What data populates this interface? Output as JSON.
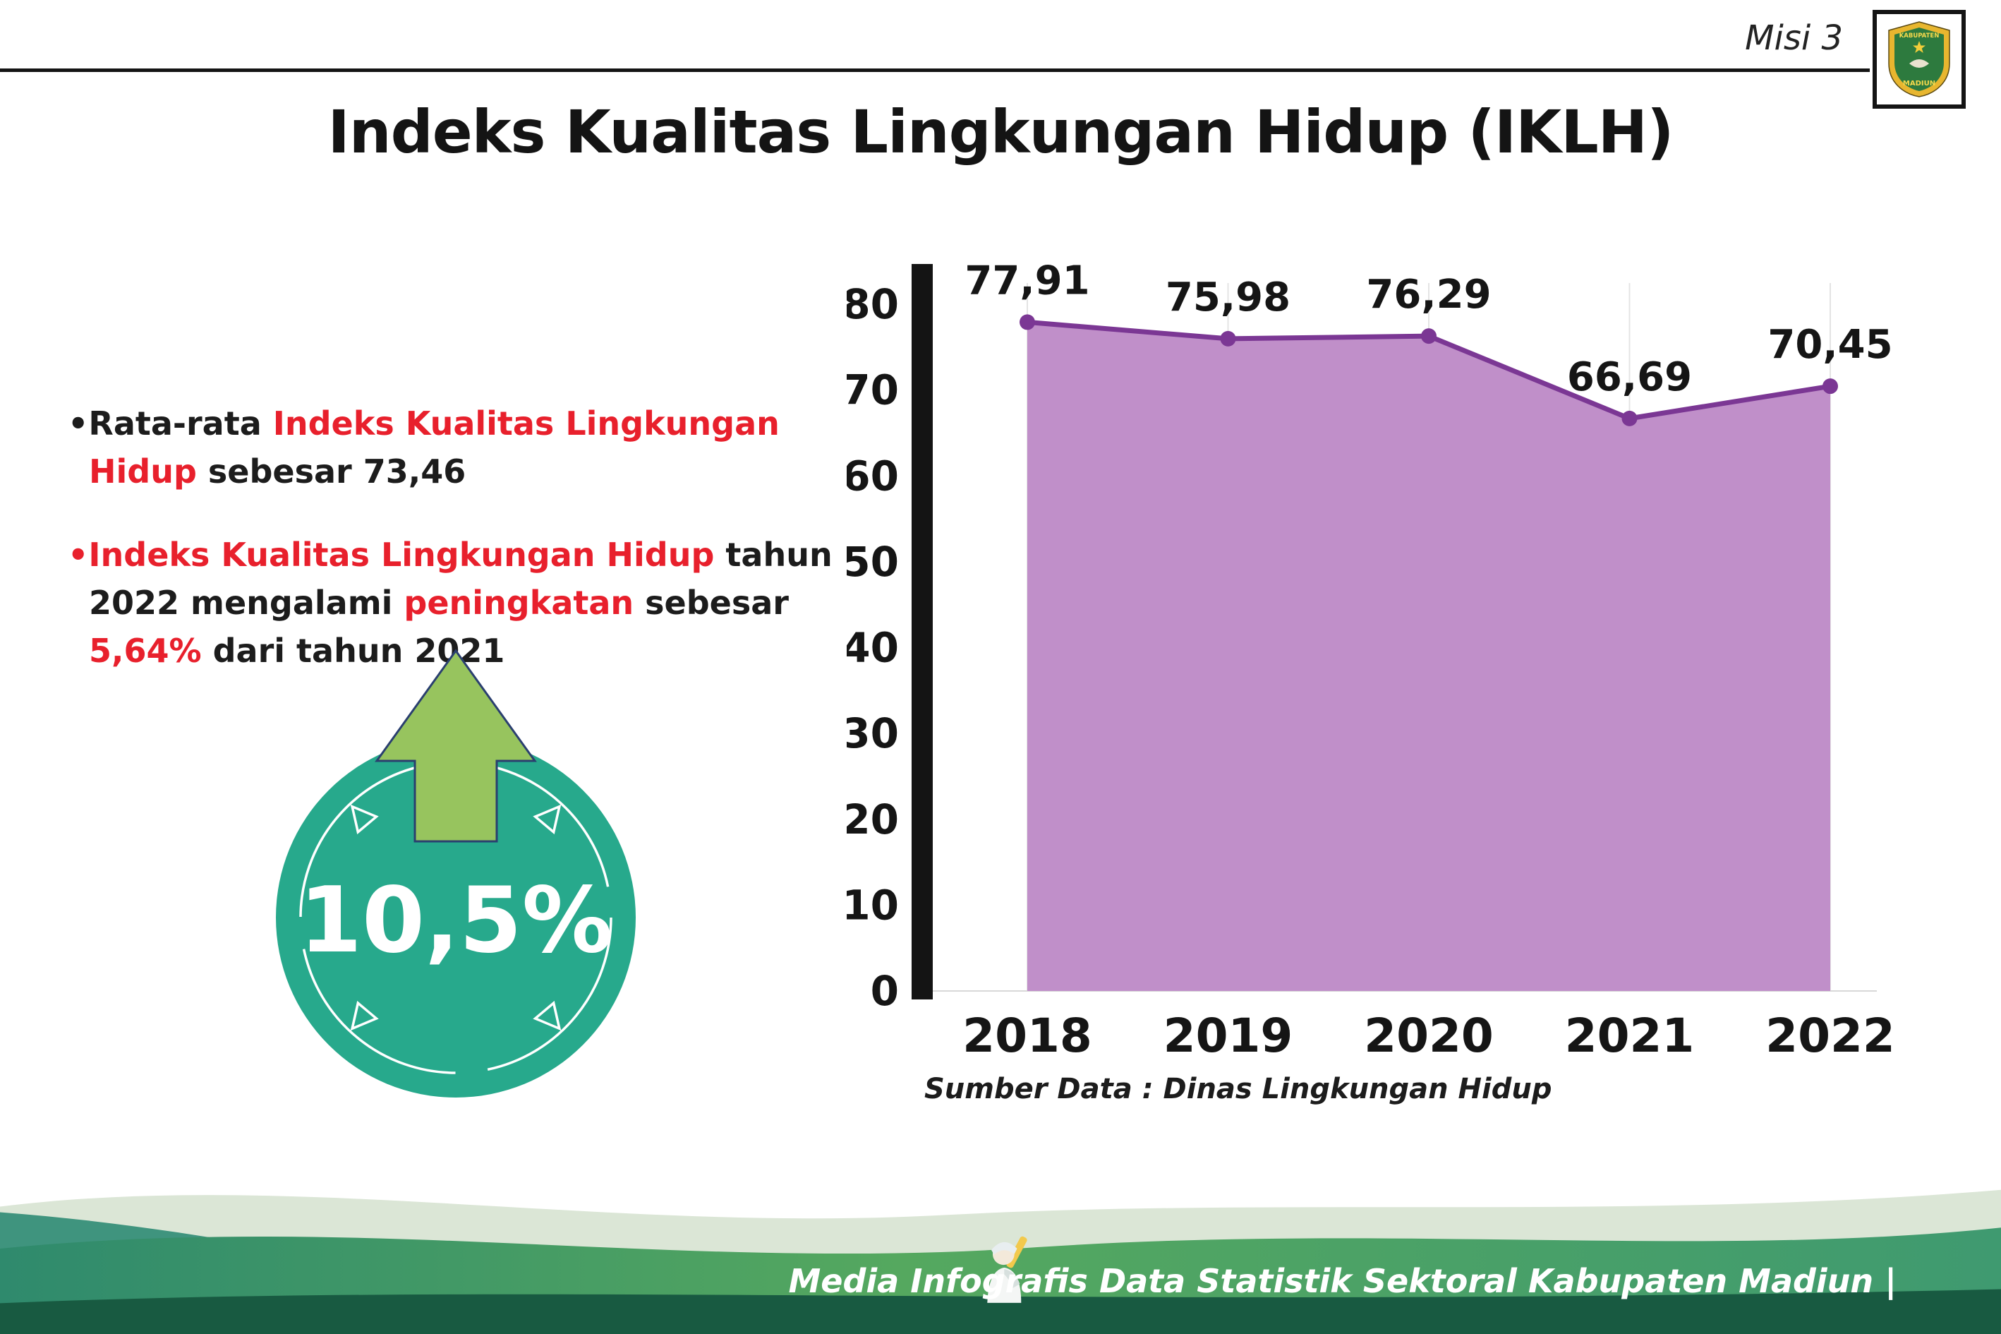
{
  "header": {
    "misi": "Misi 3",
    "title": "Indeks Kualitas Lingkungan Hidup (IKLH)"
  },
  "logo": {
    "top_text": "KABUPATEN",
    "bottom_text": "MADIUN"
  },
  "bullets": {
    "item1": {
      "bullet": "•",
      "seg1": "Rata-rata ",
      "seg2": "Indeks Kualitas Lingkungan Hidup",
      "seg3": " sebesar 73,46"
    },
    "item2": {
      "bullet": "•",
      "seg1": "Indeks Kualitas Lingkungan Hidup",
      "seg2": " tahun 2022 mengalami ",
      "seg3": "peningkatan",
      "seg4": " sebesar ",
      "seg5": "5,64%",
      "seg6": " dari tahun 2021"
    }
  },
  "badge": {
    "value": "10,5%"
  },
  "chart_data": {
    "type": "area",
    "title": "",
    "categories": [
      "2018",
      "2019",
      "2020",
      "2021",
      "2022"
    ],
    "values": [
      77.91,
      75.98,
      76.29,
      66.69,
      70.45
    ],
    "value_labels": [
      "77,91",
      "75,98",
      "76,29",
      "66,69",
      "70,45"
    ],
    "ylim": [
      0,
      80
    ],
    "yticks": [
      0,
      10,
      20,
      30,
      40,
      50,
      60,
      70,
      80
    ],
    "grid": "vertical-light",
    "legend": "none",
    "fill_color": "#c08fc9",
    "line_color": "#7b3794",
    "source_note": "Sumber Data : Dinas Lingkungan Hidup"
  },
  "footer": {
    "text": "Media Infografis Data Statistik Sektoral Kabupaten Madiun |"
  },
  "colors": {
    "accent_red": "#e8202c",
    "badge_teal": "#27a98c",
    "arrow_green": "#97c45e",
    "chart_fill": "#c08fc9",
    "chart_line": "#7b3794",
    "wave_dark_green": "#185a41",
    "wave_green": "#55a85f",
    "wave_teal": "#3f947e",
    "wave_pale": "#dbe6d6"
  }
}
